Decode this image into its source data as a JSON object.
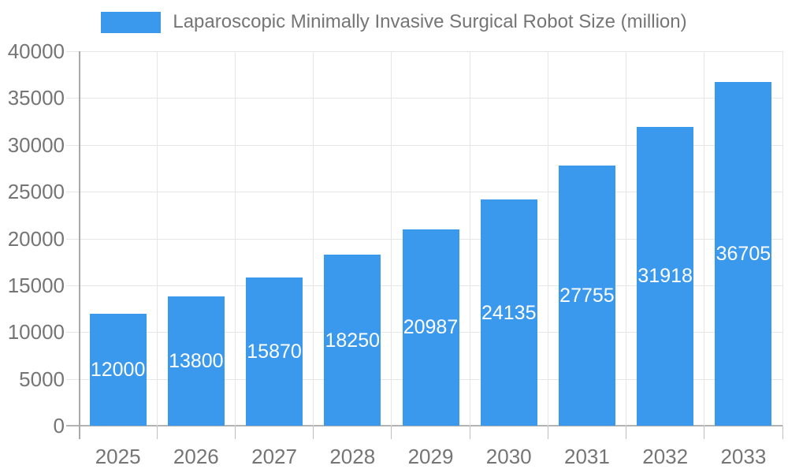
{
  "chart_data": {
    "type": "bar",
    "title": "Laparoscopic Minimally Invasive Surgical Robot Size (million)",
    "categories": [
      "2025",
      "2026",
      "2027",
      "2028",
      "2029",
      "2030",
      "2031",
      "2032",
      "2033"
    ],
    "values": [
      12000,
      13800,
      15870,
      18250,
      20987,
      24135,
      27755,
      31918,
      36705
    ],
    "series": [
      {
        "name": "Laparoscopic Minimally Invasive Surgical Robot Size (million)",
        "values": [
          12000,
          13800,
          15870,
          18250,
          20987,
          24135,
          27755,
          31918,
          36705
        ]
      }
    ],
    "xlabel": "",
    "ylabel": "",
    "ylim": [
      0,
      40000
    ],
    "yticks": [
      0,
      5000,
      10000,
      15000,
      20000,
      25000,
      30000,
      35000,
      40000
    ],
    "grid": true,
    "legend_position": "top-center",
    "value_labels": "inside-center",
    "colors": {
      "bar": "#3b99ed",
      "value_label": "#ffffff",
      "axis_text": "#757575",
      "axis_line": "#b3b3b3",
      "gridline": "#e6e6e6",
      "background": "#ffffff"
    }
  }
}
